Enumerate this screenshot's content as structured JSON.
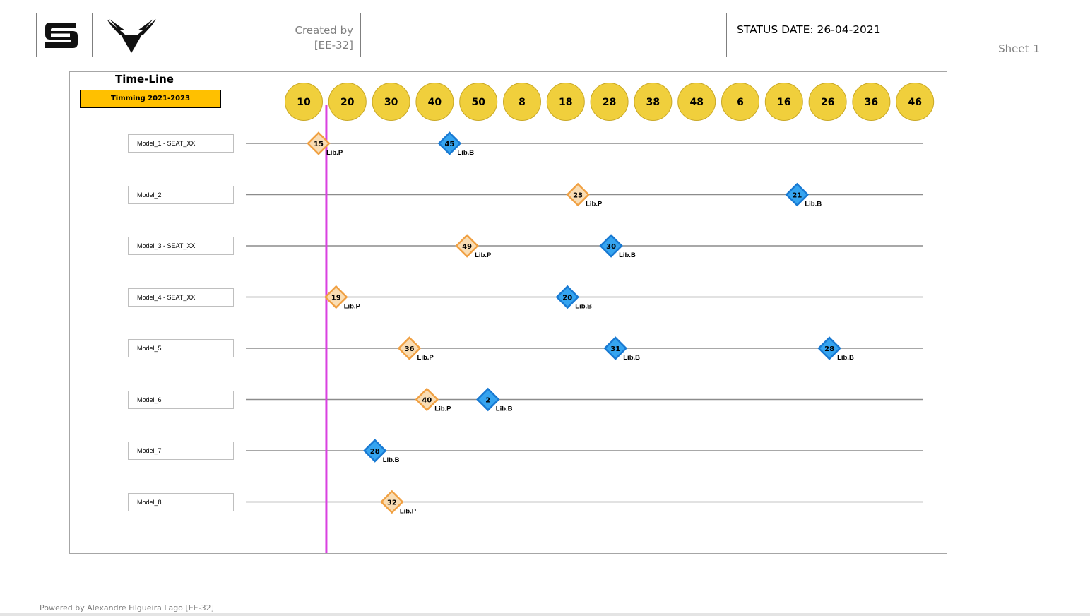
{
  "header": {
    "created_by_label": "Created by",
    "created_by_value": "[EE-32]",
    "status_date": "STATUS DATE: 26-04-2021",
    "sheet_label": "Sheet",
    "sheet_number": "1"
  },
  "timeline": {
    "title": "Time-Line",
    "timming_label": "Timming 2021-2023"
  },
  "footer": {
    "powered_by": "Powered by Alexandre Filgueira Lago [EE-32]"
  },
  "colors": {
    "lib_p_fill": "#f9ddb4",
    "lib_p_stroke": "#f0a042",
    "lib_b_fill": "#35a4f0",
    "lib_b_stroke": "#1879d2",
    "week_circle": "#f0cf3c",
    "current_marker": "#d941e0",
    "timming_bg": "#ffc000"
  },
  "chart_data": {
    "type": "timeline",
    "week_labels": [
      "10",
      "20",
      "30",
      "40",
      "50",
      "8",
      "18",
      "28",
      "38",
      "48",
      "6",
      "16",
      "26",
      "36",
      "46"
    ],
    "current_position": 0.517,
    "rows": [
      {
        "model": "Model_1 - SEAT_XX",
        "milestones": [
          {
            "week": "15",
            "type": "Lib.P",
            "pos": 0.339
          },
          {
            "week": "45",
            "type": "Lib.B",
            "pos": 3.34
          }
        ]
      },
      {
        "model": "Model_2",
        "milestones": [
          {
            "week": "23",
            "type": "Lib.P",
            "pos": 6.28
          },
          {
            "week": "21",
            "type": "Lib.B",
            "pos": 11.3
          }
        ]
      },
      {
        "model": "Model_3 - SEAT_XX",
        "milestones": [
          {
            "week": "49",
            "type": "Lib.P",
            "pos": 3.74
          },
          {
            "week": "30",
            "type": "Lib.B",
            "pos": 7.04
          }
        ]
      },
      {
        "model": "Model_4 - SEAT_XX",
        "milestones": [
          {
            "week": "19",
            "type": "Lib.P",
            "pos": 0.74
          },
          {
            "week": "20",
            "type": "Lib.B",
            "pos": 6.04
          }
        ]
      },
      {
        "model": "Model_5",
        "milestones": [
          {
            "week": "36",
            "type": "Lib.P",
            "pos": 2.42
          },
          {
            "week": "31",
            "type": "Lib.B",
            "pos": 7.14
          },
          {
            "week": "28",
            "type": "Lib.B",
            "pos": 12.04
          }
        ]
      },
      {
        "model": "Model_6",
        "milestones": [
          {
            "week": "40",
            "type": "Lib.P",
            "pos": 2.82
          },
          {
            "week": "2",
            "type": "Lib.B",
            "pos": 4.22
          }
        ]
      },
      {
        "model": "Model_7",
        "milestones": [
          {
            "week": "28",
            "type": "Lib.B",
            "pos": 1.63
          }
        ]
      },
      {
        "model": "Model_8",
        "milestones": [
          {
            "week": "32",
            "type": "Lib.P",
            "pos": 2.02
          }
        ]
      }
    ]
  }
}
